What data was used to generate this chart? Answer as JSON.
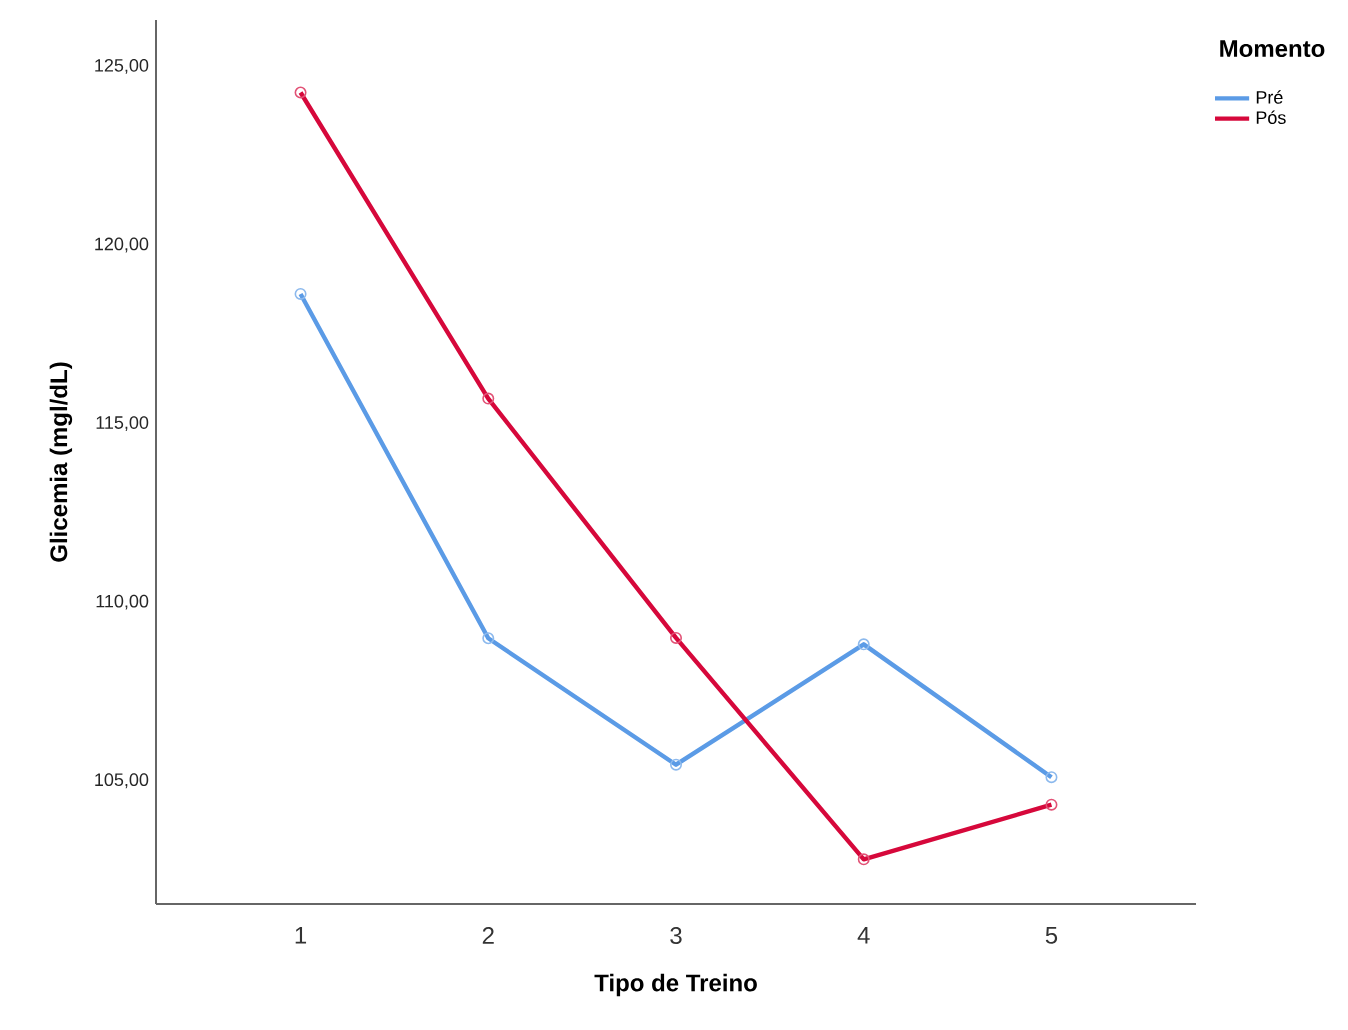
{
  "chart_data": {
    "type": "line",
    "xlabel": "Tipo de Treino",
    "ylabel": "Glicemia (mgl/dL)",
    "legend_title": "Momento",
    "categories": [
      "1",
      "2",
      "3",
      "4",
      "5"
    ],
    "ylim": [
      101.55,
      126.3
    ],
    "yticks": [
      {
        "value": 105,
        "label": "105,00"
      },
      {
        "value": 110,
        "label": "110,00"
      },
      {
        "value": 115,
        "label": "115,00"
      },
      {
        "value": 120,
        "label": "120,00"
      },
      {
        "value": 125,
        "label": "125,00"
      }
    ],
    "series": [
      {
        "name": "Pré",
        "color": "#5b9be6",
        "values": [
          118.63,
          108.99,
          105.45,
          108.82,
          105.1
        ]
      },
      {
        "name": "Pós",
        "color": "#d6083b",
        "values": [
          124.27,
          115.7,
          109.0,
          102.8,
          104.33
        ]
      }
    ],
    "legend": "top right",
    "marker": "circle",
    "line_style": "solid",
    "grid": false
  }
}
